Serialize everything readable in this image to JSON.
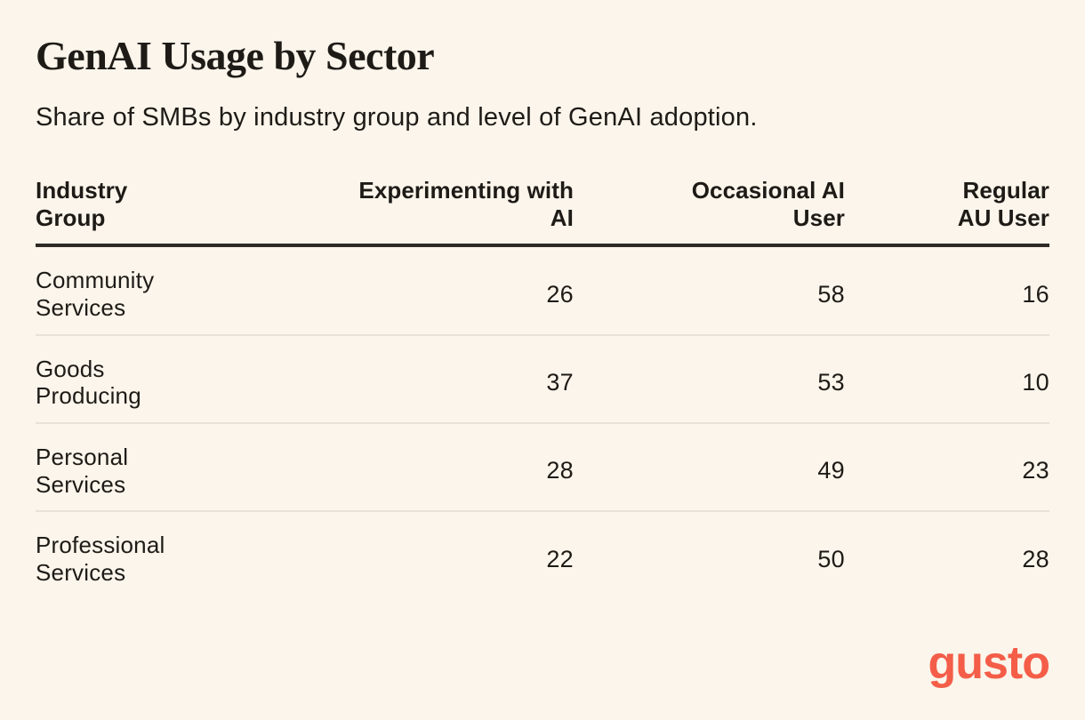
{
  "page": {
    "title": "GenAI Usage by Sector",
    "subtitle": "Share of SMBs by industry group and level of GenAI adoption."
  },
  "chart_data": {
    "type": "table",
    "title": "GenAI Usage by Sector",
    "subtitle": "Share of SMBs by industry group and level of GenAI adoption.",
    "categories": [
      "Community Services",
      "Goods Producing",
      "Personal Services",
      "Professional Services"
    ],
    "series": [
      {
        "name": "Experimenting with AI",
        "values": [
          26,
          37,
          28,
          22
        ]
      },
      {
        "name": "Occasional AI User",
        "values": [
          58,
          53,
          49,
          50
        ]
      },
      {
        "name": "Regular AU User",
        "values": [
          16,
          10,
          23,
          28
        ]
      }
    ]
  },
  "table": {
    "columns": [
      {
        "label": "Industry\nGroup"
      },
      {
        "label": "Experimenting with\nAI"
      },
      {
        "label": "Occasional AI\nUser"
      },
      {
        "label": "Regular\nAU User"
      }
    ],
    "rows": [
      {
        "industry": "Community\nServices",
        "experimenting": "26",
        "occasional": "58",
        "regular": "16"
      },
      {
        "industry": "Goods\nProducing",
        "experimenting": "37",
        "occasional": "53",
        "regular": "10"
      },
      {
        "industry": "Personal\nServices",
        "experimenting": "28",
        "occasional": "49",
        "regular": "23"
      },
      {
        "industry": "Professional\nServices",
        "experimenting": "22",
        "occasional": "50",
        "regular": "28"
      }
    ]
  },
  "branding": {
    "logo_text": "gusto"
  },
  "colors": {
    "background": "#FBF5EB",
    "text": "#1E1B17",
    "header_rule": "#2E2B27",
    "row_divider": "#E9E2D7",
    "logo": "#F45D48"
  }
}
